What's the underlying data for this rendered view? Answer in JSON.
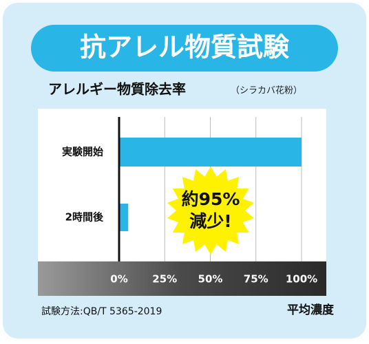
{
  "chart_data": {
    "type": "hbar",
    "title": "抗アレル物質試験",
    "subtitle": "アレルギー物質除去率",
    "subtitle_note": "（シラカバ花粉）",
    "categories": [
      "実験開始",
      "2時間後"
    ],
    "values": [
      100,
      5
    ],
    "color": "#29b6e6",
    "xlim": [
      0,
      100
    ],
    "xticks": [
      {
        "value": 0,
        "label": "0%"
      },
      {
        "value": 25,
        "label": "25%"
      },
      {
        "value": 50,
        "label": "50%"
      },
      {
        "value": 75,
        "label": "75%"
      },
      {
        "value": 100,
        "label": "100%"
      }
    ],
    "grid": true,
    "annotation": [
      "約95%",
      "減少!"
    ],
    "x_label": "平均濃度",
    "footnote": "試験方法:QB/T 5365-2019"
  }
}
